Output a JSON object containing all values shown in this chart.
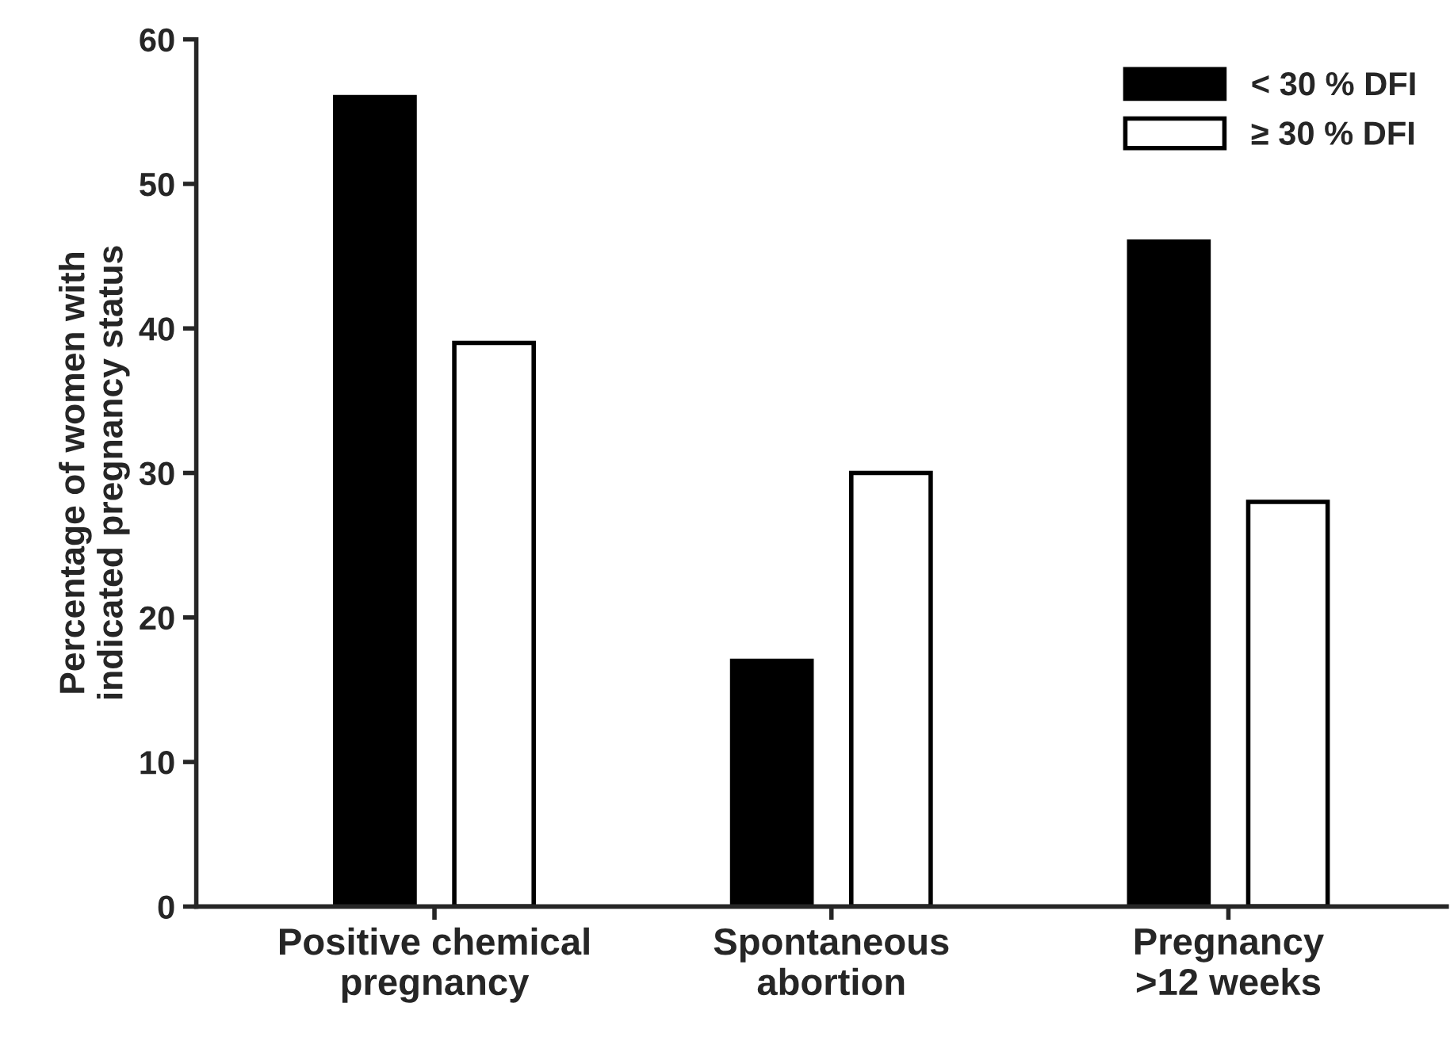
{
  "chart_data": {
    "type": "bar",
    "ylabel": "Percentage of women with\nindicated pregnancy status",
    "categories": [
      "Positive chemical\npregnancy",
      "Spontaneous\nabortion",
      "Pregnancy\n>12 weeks"
    ],
    "series": [
      {
        "name": "< 30 % DFI",
        "color": "#000000",
        "values": [
          56,
          17,
          46
        ]
      },
      {
        "name": "≥ 30 % DFI",
        "color": "#ffffff",
        "values": [
          39,
          30,
          28
        ]
      }
    ],
    "ylim": [
      0,
      60
    ],
    "yticks": [
      0,
      10,
      20,
      30,
      40,
      50,
      60
    ],
    "grid": false,
    "legend": "top right"
  }
}
